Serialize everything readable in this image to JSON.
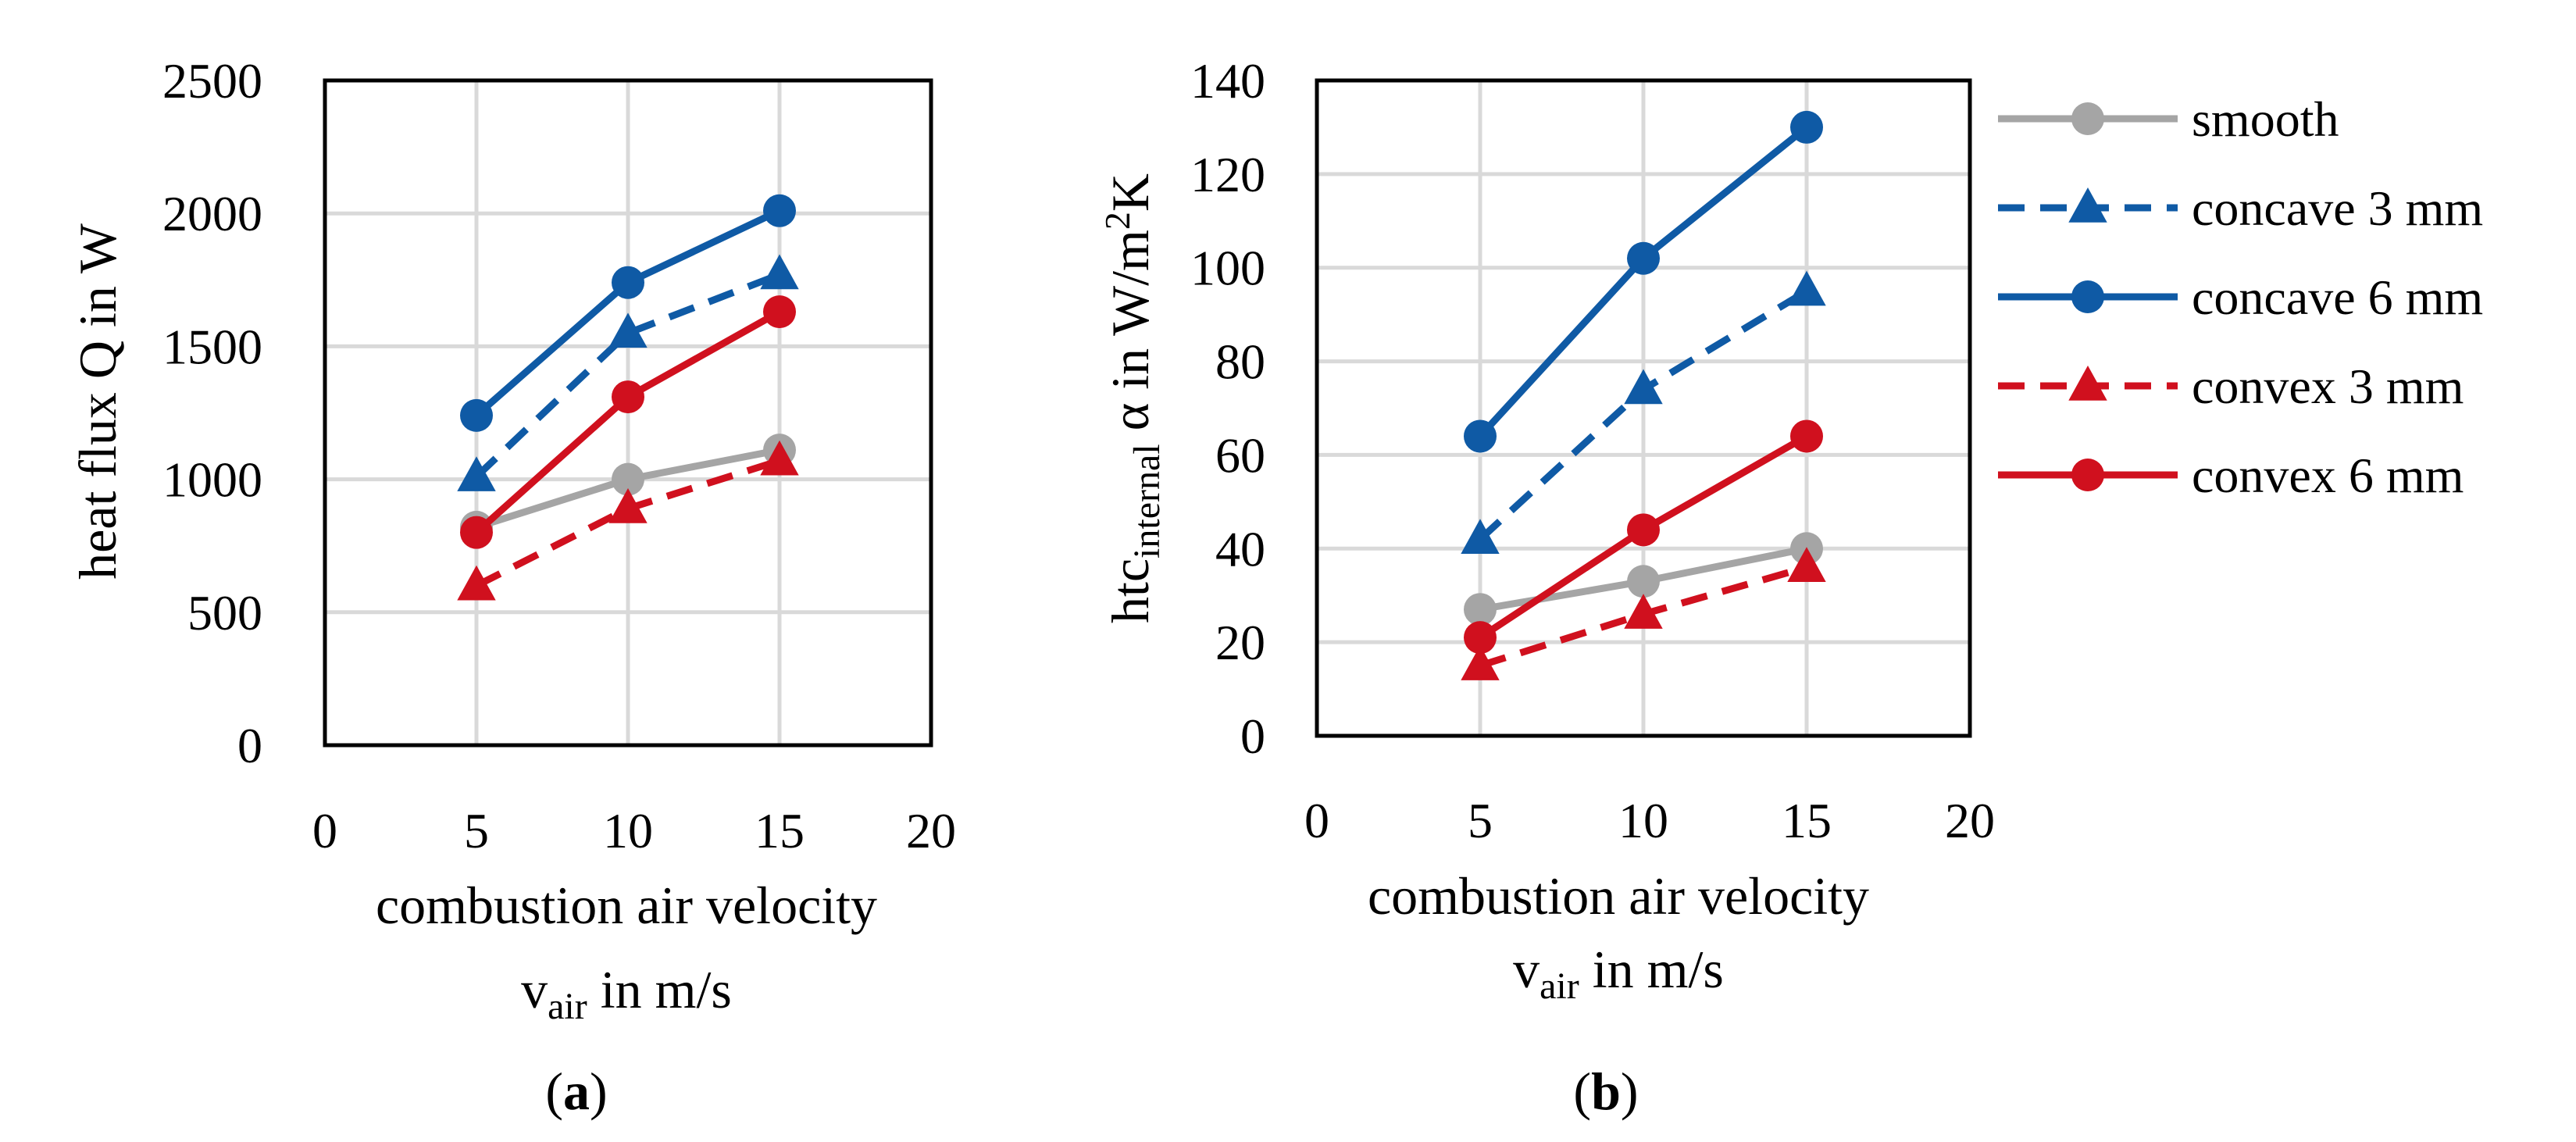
{
  "chart_data": [
    {
      "type": "line",
      "panel_label": "a",
      "title": "",
      "xlabel": "combustion air velocity",
      "xlabel2": {
        "base": "v",
        "sub": "air",
        "rest": " in m/s"
      },
      "ylabel": "heat flux Q in W",
      "xlim": [
        0,
        20
      ],
      "ylim": [
        0,
        2500
      ],
      "xticks": [
        0,
        5,
        10,
        15,
        20
      ],
      "yticks": [
        0,
        500,
        1000,
        1500,
        2000,
        2500
      ],
      "grid": true,
      "x": [
        5,
        10,
        15
      ],
      "series": [
        {
          "name": "smooth",
          "values": [
            820,
            1000,
            1110
          ]
        },
        {
          "name": "concave 3 mm",
          "values": [
            1010,
            1550,
            1770
          ]
        },
        {
          "name": "concave 6 mm",
          "values": [
            1240,
            1740,
            2010
          ]
        },
        {
          "name": "convex 3 mm",
          "values": [
            600,
            890,
            1070
          ]
        },
        {
          "name": "convex 6 mm",
          "values": [
            800,
            1310,
            1630
          ]
        }
      ]
    },
    {
      "type": "line",
      "panel_label": "b",
      "title": "",
      "xlabel": "combustion air velocity",
      "xlabel2": {
        "base": "v",
        "sub": "air",
        "rest": " in m/s"
      },
      "ylabel": {
        "base": "htc",
        "sub": "internal",
        "rest": " α in W/m",
        "sup": "2",
        "tail": "K"
      },
      "xlim": [
        0,
        20
      ],
      "ylim": [
        0,
        140
      ],
      "xticks": [
        0,
        5,
        10,
        15,
        20
      ],
      "yticks": [
        0,
        20,
        40,
        60,
        80,
        100,
        120,
        140
      ],
      "grid": true,
      "x": [
        5,
        10,
        15
      ],
      "series": [
        {
          "name": "smooth",
          "values": [
            27,
            33,
            40
          ]
        },
        {
          "name": "concave 3 mm",
          "values": [
            42,
            74,
            95
          ]
        },
        {
          "name": "concave 6 mm",
          "values": [
            64,
            102,
            130
          ]
        },
        {
          "name": "convex 3 mm",
          "values": [
            15,
            26,
            36
          ]
        },
        {
          "name": "convex 6 mm",
          "values": [
            21,
            44,
            64
          ]
        }
      ]
    }
  ],
  "legend": {
    "placement": "right",
    "entries": [
      {
        "name": "smooth",
        "color": "#a5a5a5",
        "dash": "solid",
        "marker": "circle"
      },
      {
        "name": "concave 3 mm",
        "color": "#0f5aa5",
        "dash": "dashed",
        "marker": "triangle"
      },
      {
        "name": "concave 6 mm",
        "color": "#0f5aa5",
        "dash": "solid",
        "marker": "circle"
      },
      {
        "name": "convex 3 mm",
        "color": "#d0101e",
        "dash": "dashed",
        "marker": "triangle"
      },
      {
        "name": "convex 6 mm",
        "color": "#d0101e",
        "dash": "solid",
        "marker": "circle"
      }
    ]
  }
}
